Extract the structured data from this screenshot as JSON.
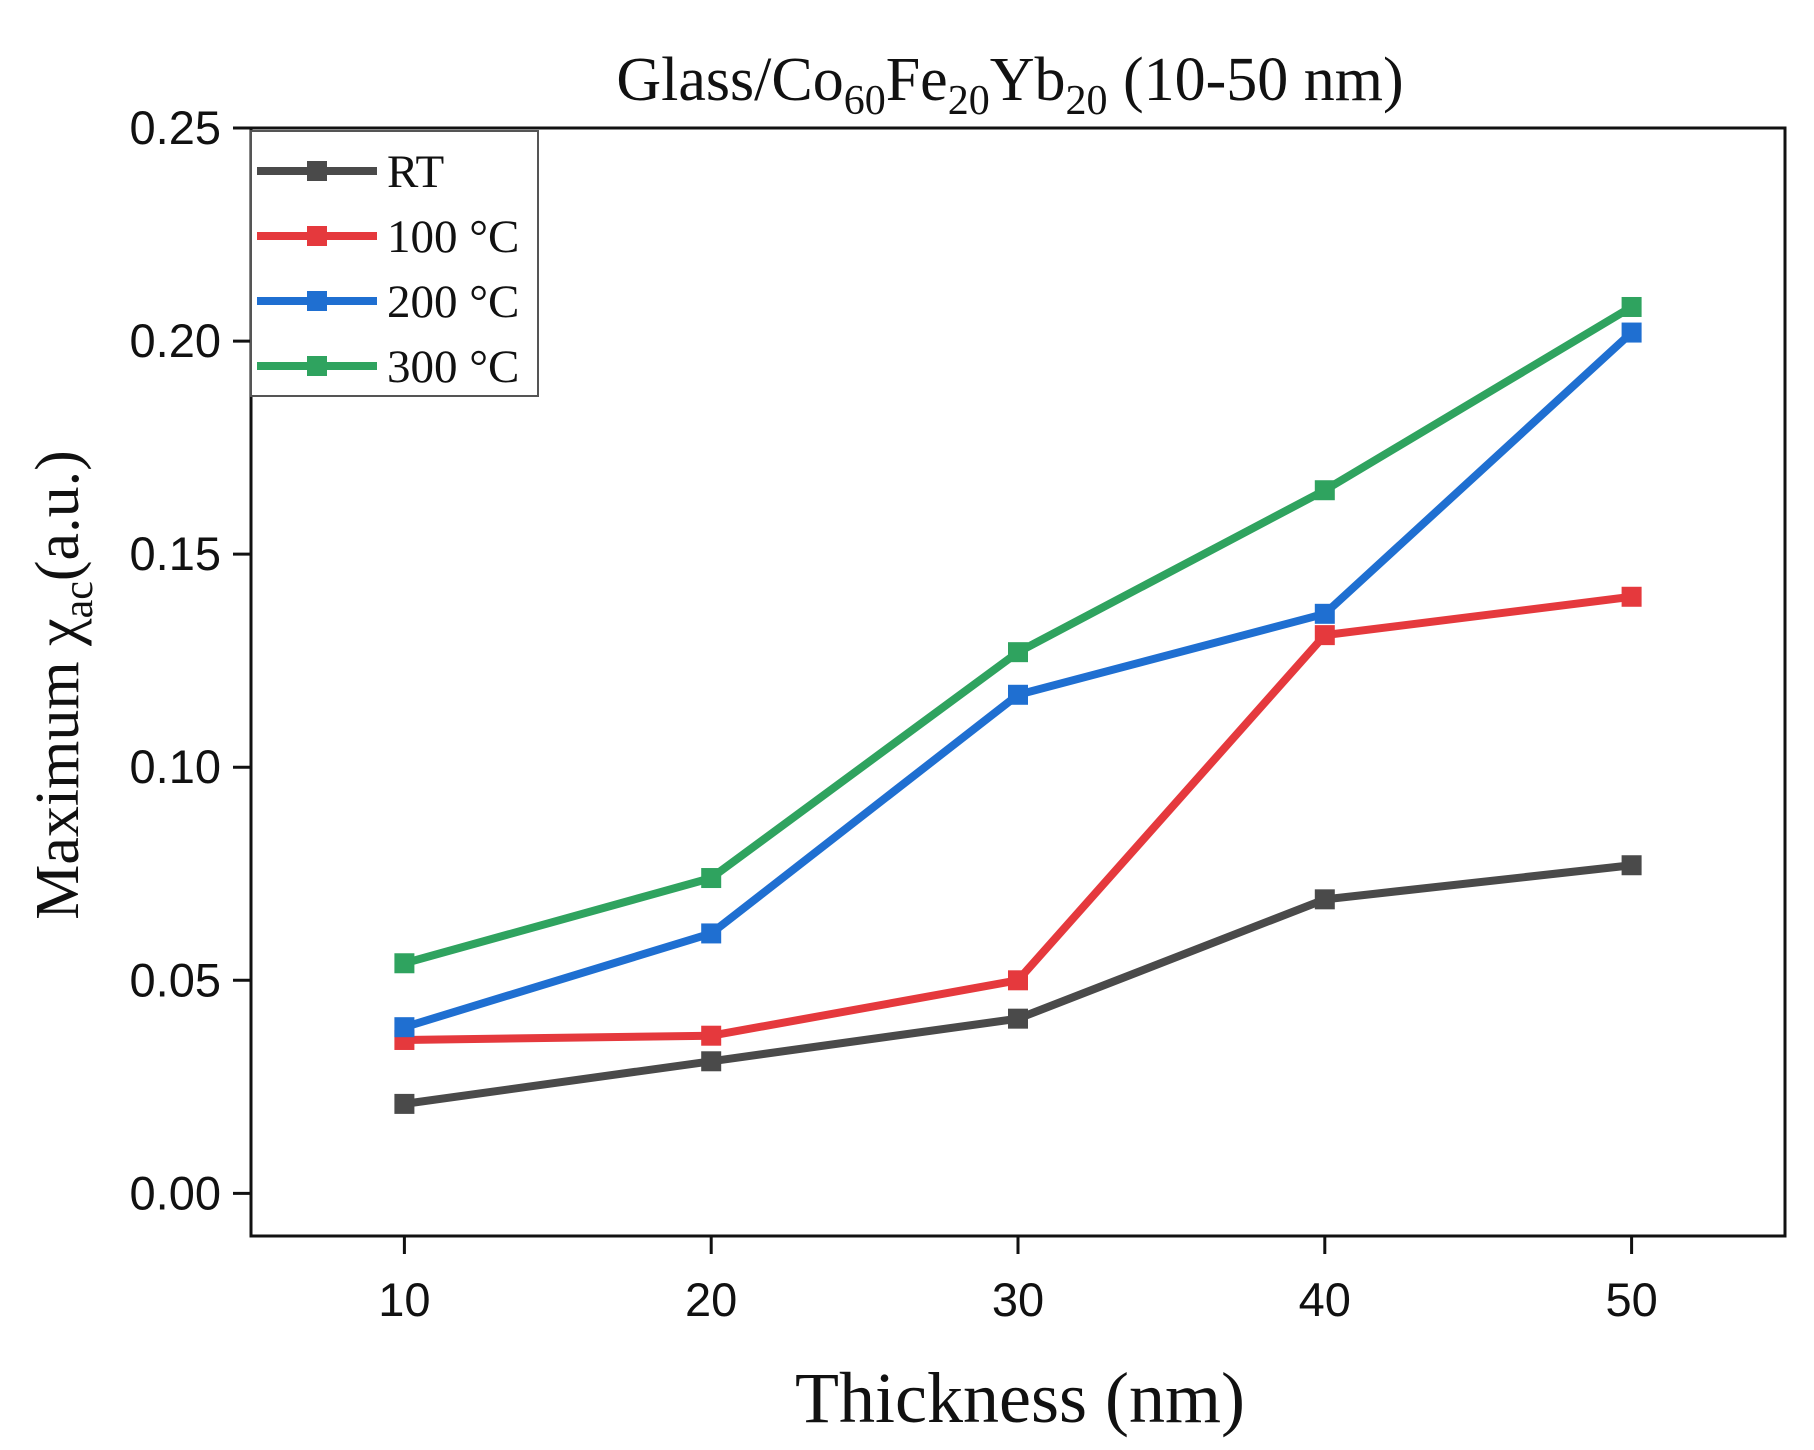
{
  "chart_data": {
    "type": "line",
    "title": {
      "base": "Glass/Co",
      "co_sub": "60",
      "fe": "Fe",
      "fe_sub": "20",
      "yb": "Yb",
      "yb_sub": "20",
      "rest": " (10-50 nm)"
    },
    "xlabel": "Thickness (nm)",
    "ylabel": {
      "main": "Maximum χ",
      "sub": "ac",
      "rest": "(a.u.)"
    },
    "x": [
      10,
      20,
      30,
      40,
      50
    ],
    "x_ticks": [
      "10",
      "20",
      "30",
      "40",
      "50"
    ],
    "xlim": [
      5,
      55
    ],
    "y_ticks": [
      "0.00",
      "0.05",
      "0.10",
      "0.15",
      "0.20",
      "0.25"
    ],
    "ylim": [
      -0.01,
      0.25
    ],
    "grid": false,
    "legend_position": "top-left",
    "series": [
      {
        "name": "RT",
        "color": "#4a4a4a",
        "values": [
          0.021,
          0.031,
          0.041,
          0.069,
          0.077
        ]
      },
      {
        "name": "100 °C",
        "color": "#e5393d",
        "values": [
          0.036,
          0.037,
          0.05,
          0.131,
          0.14
        ]
      },
      {
        "name": "200 °C",
        "color": "#1f6fd1",
        "values": [
          0.039,
          0.061,
          0.117,
          0.136,
          0.202
        ]
      },
      {
        "name": "300 °C",
        "color": "#2fa35f",
        "values": [
          0.054,
          0.074,
          0.127,
          0.165,
          0.208
        ]
      }
    ]
  }
}
